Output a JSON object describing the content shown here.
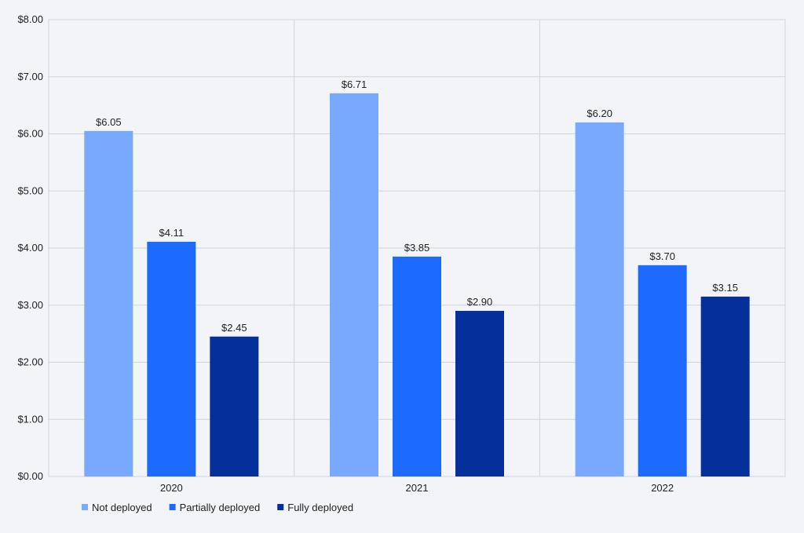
{
  "chart_data": {
    "type": "bar",
    "title": "",
    "xlabel": "",
    "ylabel": "",
    "categories": [
      "2020",
      "2021",
      "2022"
    ],
    "series": [
      {
        "name": "Not deployed",
        "color": "#78a9ff",
        "values": [
          6.05,
          6.71,
          6.2
        ],
        "labels": [
          "$6.05",
          "$6.71",
          "$6.20"
        ]
      },
      {
        "name": "Partially deployed",
        "color": "#1d6afe",
        "values": [
          4.11,
          3.85,
          3.7
        ],
        "labels": [
          "$4.11",
          "$3.85",
          "$3.70"
        ]
      },
      {
        "name": "Fully deployed",
        "color": "#052f9b",
        "values": [
          2.45,
          2.9,
          3.15
        ],
        "labels": [
          "$2.45",
          "$2.90",
          "$3.15"
        ]
      }
    ],
    "ylim": [
      0,
      8
    ],
    "yticks": [
      0,
      1,
      2,
      3,
      4,
      5,
      6,
      7,
      8
    ],
    "ytick_labels": [
      "$0.00",
      "$1.00",
      "$2.00",
      "$3.00",
      "$4.00",
      "$5.00",
      "$6.00",
      "$7.00",
      "$8.00"
    ],
    "grid": true,
    "legend_position": "bottom-left"
  }
}
